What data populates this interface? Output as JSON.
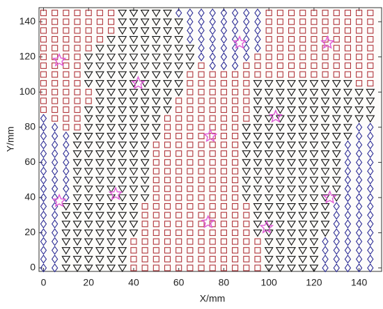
{
  "chart_data": {
    "type": "scatter",
    "xlabel": "X/mm",
    "ylabel": "Y/mm",
    "xlim": [
      -2,
      150
    ],
    "ylim": [
      -2,
      148
    ],
    "xticks": [
      0,
      20,
      40,
      60,
      80,
      100,
      120,
      140
    ],
    "yticks": [
      0,
      20,
      40,
      60,
      80,
      100,
      120,
      140
    ],
    "grid_x": [
      0,
      5,
      10,
      15,
      20,
      25,
      30,
      35,
      40,
      45,
      50,
      55,
      60,
      65,
      70,
      75,
      80,
      85,
      90,
      95,
      100,
      105,
      110,
      115,
      120,
      125,
      130,
      135,
      140,
      145
    ],
    "grid_y": [
      0,
      5,
      10,
      15,
      20,
      25,
      30,
      35,
      40,
      45,
      50,
      55,
      60,
      65,
      70,
      75,
      80,
      85,
      90,
      95,
      100,
      105,
      110,
      115,
      120,
      125,
      130,
      135,
      140,
      145
    ],
    "classes": [
      "DDTTTTTTSSSSSSSSSSSSTTTTTDDDDD",
      "DDTTTTTTSSSSSSSSSSSSTTTTTDDDDD",
      "DDTTTTTTSSSSSSSSSSSSTTTTTDDDDD",
      "DDTTTTTTSSSSSSSSSSSSTTTTTDDDDD",
      "DDTTTTTTTSSSSSSSSSSTTTTTTTDDDD",
      "DDTTTTTTTSSSSSSSSSSTTTTTTTDDDD",
      "DDTTTTTTTSSSSSSSSSSTTTTTTTDDDD",
      "DDTTTTTTTSSSSSSSSSSTTTTTTTDDDD",
      "DDDTTTTTTTSSSSSSSSTTTTTTTTTDDD",
      "DDDTTTTTTTSSSSSSSSTTTTTTTTTDDD",
      "DDDTTTTTTTSSSSSSSSTTTTTTTTTDDD",
      "DDDTTTTTTTSSSSSSSSTTTTTTTTTDDD",
      "DDDTTTTTTTSSSSSSSSTTTTTTTTTDDD",
      "DDDTTTTTTTSSSSSSSSTTTTTTTTTDDD",
      "DDDTTTTTTTSSSSSSSSTTTTTTTTTDDD",
      "DDDTTTTTTTTSSSSSSSTTTTTTTTTTDD",
      "DDSSTTTTTTTSSSSSSSTTTTTTTTTTDD",
      "DSSSTTTTTTTSSSSSSSSTTTTTTTTTTT",
      "SSSSTTTTTTTTSSSSSSSTTTTTTTTTTT",
      "SSSSSTTTTTTTSSSSSSSTTTTTTTTTTT",
      "SSSSSTTTTTTTTSSSSSSTTTTTTTTTTT",
      "SSSSTTTTTTTTTSSSSSSTTTTTTTTTSS",
      "SSSSTTTTTTTTTSSSSSSSSSSSSSSSSS",
      "SSSSTTTTTTTTTTSDDDSSSSSSSSSSSS",
      "SSSSTTTTTTTTTTDDDDDSSSSSSSSSSS",
      "SSSSSTTTTTTTTTDDDDDDSSSSSSSSSS",
      "SSSSSSTTTTTTTDDDDDDDSSSSSSSSSS",
      "SSSSSSSTTTTTTDDDDDDDSSSSSSSSSS",
      "SSSSSSSTTTTTTDDDDDDDSSSSSSSSSS",
      "SSSSSSSTTTTTDDDDDDDDSSSSSSSSSS"
    ],
    "markers": {
      "S": {
        "shape": "square",
        "color": "#b0343a"
      },
      "D": {
        "shape": "diamond",
        "color": "#2c2c96"
      },
      "T": {
        "shape": "triangle",
        "color": "#111111"
      }
    },
    "stars": {
      "color": "#e05ad8",
      "x": [
        7,
        42,
        87,
        126,
        103,
        74,
        7,
        32,
        127,
        73,
        99
      ],
      "y": [
        118,
        105,
        128,
        128,
        86,
        75,
        38,
        42,
        40,
        26,
        23
      ]
    }
  }
}
